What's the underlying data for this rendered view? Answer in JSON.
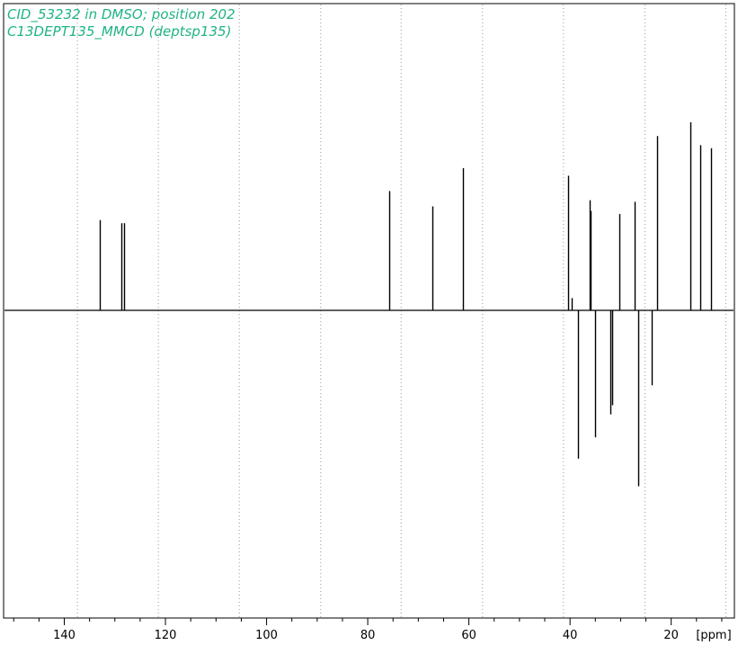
{
  "chart_data": {
    "type": "line",
    "title_lines": [
      "CID_53232 in DMSO; position 202",
      "C13DEPT135_MMCD (deptsp135)"
    ],
    "xlabel": "[ppm]",
    "x_reversed": true,
    "xlim": [
      152,
      7.5
    ],
    "y_range": [
      -1.2,
      1.2
    ],
    "x_ticks": [
      140,
      120,
      100,
      80,
      60,
      40,
      20
    ],
    "x_ticks_minor_step": 5,
    "grid_lines_ppm": [
      137.4,
      121.4,
      105.4,
      89.3,
      73.4,
      57.3,
      41.3,
      25.2,
      9.2
    ],
    "grid": true,
    "peaks": [
      {
        "ppm": 133.0,
        "intensity": 0.59
      },
      {
        "ppm": 128.8,
        "intensity": 0.57
      },
      {
        "ppm": 128.2,
        "intensity": 0.57
      },
      {
        "ppm": 75.7,
        "intensity": 0.78
      },
      {
        "ppm": 67.3,
        "intensity": 0.68
      },
      {
        "ppm": 61.2,
        "intensity": 0.93
      },
      {
        "ppm": 40.4,
        "intensity": 0.88
      },
      {
        "ppm": 39.7,
        "intensity": 0.08
      },
      {
        "ppm": 38.5,
        "intensity": -0.97
      },
      {
        "ppm": 36.1,
        "intensity": 0.72
      },
      {
        "ppm": 35.9,
        "intensity": 0.65
      },
      {
        "ppm": 35.1,
        "intensity": -0.83
      },
      {
        "ppm": 32.0,
        "intensity": -0.68
      },
      {
        "ppm": 31.6,
        "intensity": -0.62
      },
      {
        "ppm": 30.2,
        "intensity": 0.63
      },
      {
        "ppm": 27.2,
        "intensity": 0.71
      },
      {
        "ppm": 26.5,
        "intensity": -1.15
      },
      {
        "ppm": 23.9,
        "intensity": -0.49
      },
      {
        "ppm": 22.8,
        "intensity": 1.14
      },
      {
        "ppm": 16.2,
        "intensity": 1.23
      },
      {
        "ppm": 14.2,
        "intensity": 1.08
      },
      {
        "ppm": 12.1,
        "intensity": 1.06
      }
    ],
    "colors": {
      "title": "#1fb386",
      "spectrum": "#000000",
      "grid": "#999999",
      "frame": "#000000"
    }
  }
}
